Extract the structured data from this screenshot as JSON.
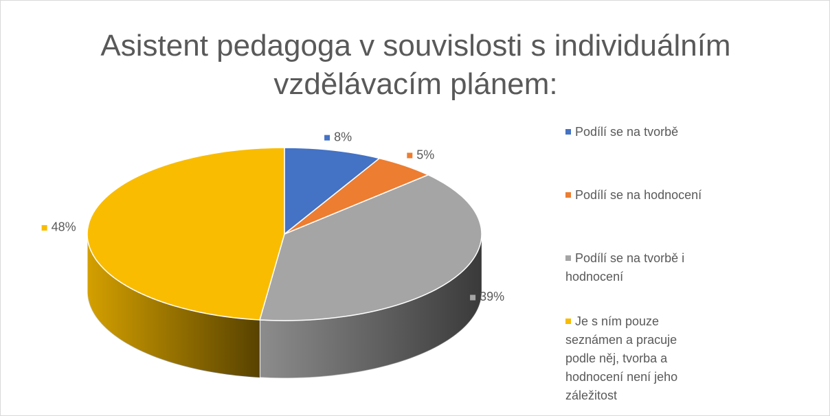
{
  "chart_data": {
    "type": "pie3d",
    "title": "Asistent pedagoga v souvislosti s individuálním vzdělávacím plánem:",
    "categories": [
      "Podílí se na tvorbě",
      "Podílí se na hodnocení",
      "Podílí se na tvorbě i hodnocení",
      "Je s ním pouze seznámen a pracuje podle něj, tvorba a hodnocení není jeho záležitost"
    ],
    "values": [
      8,
      5,
      39,
      48
    ],
    "value_labels": [
      "8%",
      "5%",
      "39%",
      "48%"
    ],
    "colors": [
      "#4472c4",
      "#ed7d31",
      "#a5a5a5",
      "#f9bc00"
    ],
    "legend": "right"
  }
}
